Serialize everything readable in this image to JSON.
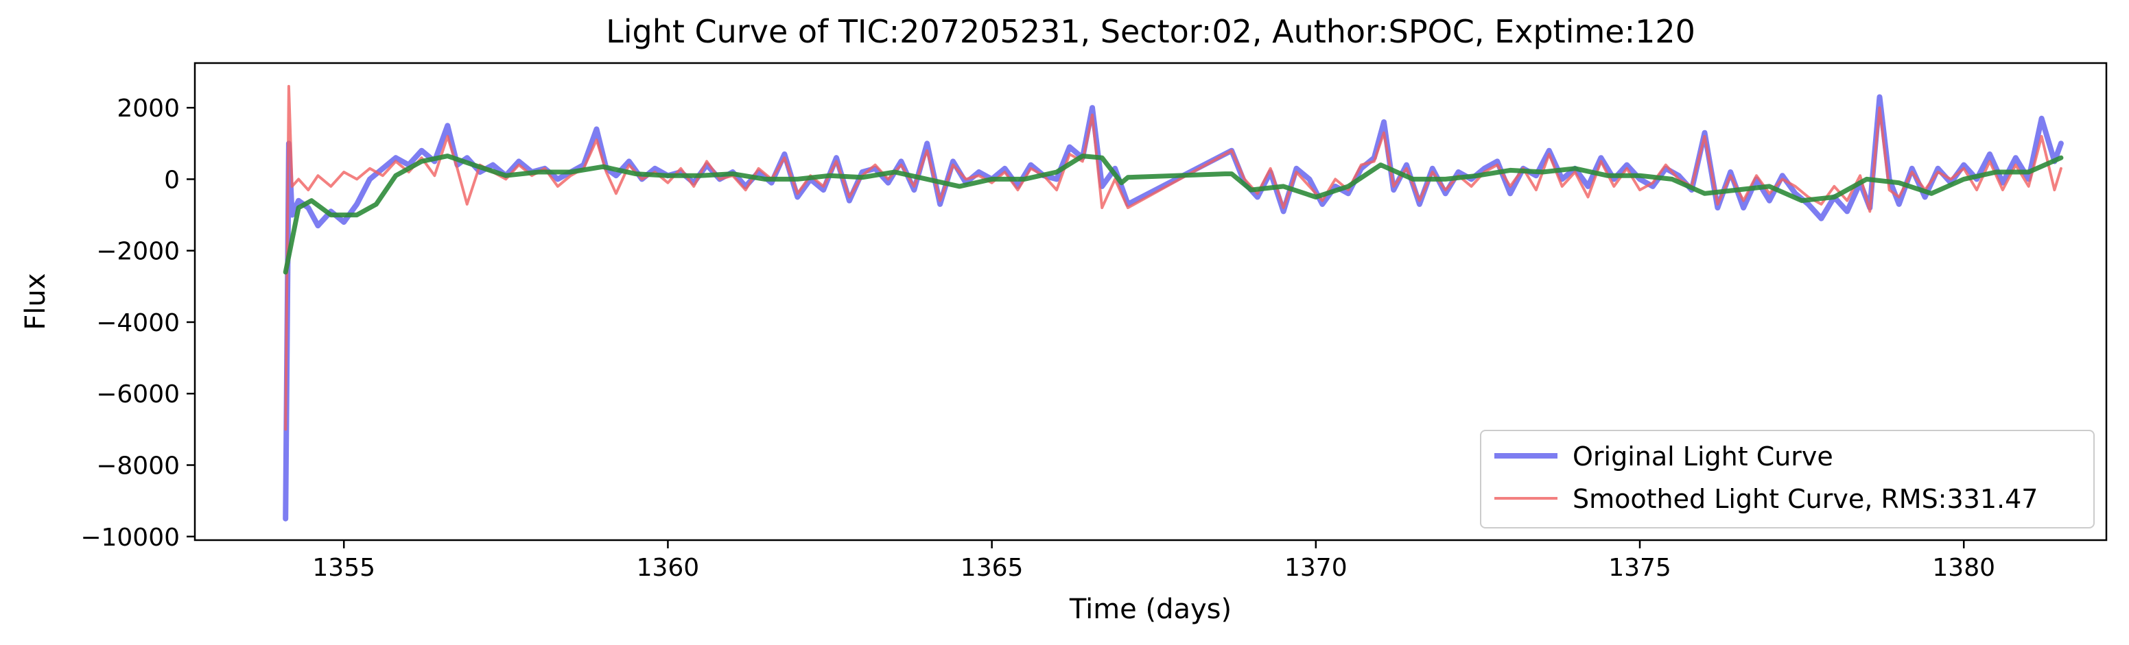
{
  "chart_data": {
    "type": "line",
    "title": "Light Curve of TIC:207205231, Sector:02, Author:SPOC, Exptime:120",
    "xlabel": "Time (days)",
    "ylabel": "Flux",
    "xlim": [
      1352.7,
      1382.2
    ],
    "ylim": [
      -10100,
      3250
    ],
    "x_ticks": [
      1355,
      1360,
      1365,
      1370,
      1375,
      1380
    ],
    "x_tick_labels": [
      "1355",
      "1360",
      "1365",
      "1370",
      "1375",
      "1380"
    ],
    "y_ticks": [
      2000,
      0,
      -2000,
      -4000,
      -6000,
      -8000,
      -10000
    ],
    "y_tick_labels": [
      "2000",
      "0",
      "−2000",
      "−4000",
      "−6000",
      "−8000",
      "−10000"
    ],
    "grid": false,
    "legend_position": "lower-right",
    "series": [
      {
        "name": "Original Light Curve",
        "color": "#6666ee",
        "x": [
          1354.1,
          1354.15,
          1354.2,
          1354.3,
          1354.45,
          1354.6,
          1354.8,
          1355.0,
          1355.2,
          1355.4,
          1355.6,
          1355.8,
          1356.0,
          1356.2,
          1356.4,
          1356.6,
          1356.75,
          1356.9,
          1357.1,
          1357.3,
          1357.5,
          1357.7,
          1357.9,
          1358.1,
          1358.3,
          1358.5,
          1358.7,
          1358.9,
          1359.05,
          1359.2,
          1359.4,
          1359.6,
          1359.8,
          1360.0,
          1360.2,
          1360.4,
          1360.6,
          1360.8,
          1361.0,
          1361.2,
          1361.4,
          1361.6,
          1361.8,
          1362.0,
          1362.2,
          1362.4,
          1362.6,
          1362.8,
          1363.0,
          1363.2,
          1363.4,
          1363.6,
          1363.8,
          1364.0,
          1364.2,
          1364.4,
          1364.6,
          1364.8,
          1365.0,
          1365.2,
          1365.4,
          1365.6,
          1365.8,
          1366.0,
          1366.2,
          1366.4,
          1366.55,
          1366.7,
          1366.9,
          1367.1,
          1368.7,
          1368.9,
          1369.1,
          1369.3,
          1369.5,
          1369.7,
          1369.9,
          1370.1,
          1370.3,
          1370.5,
          1370.7,
          1370.9,
          1371.05,
          1371.2,
          1371.4,
          1371.6,
          1371.8,
          1372.0,
          1372.2,
          1372.4,
          1372.6,
          1372.8,
          1373.0,
          1373.2,
          1373.4,
          1373.6,
          1373.8,
          1374.0,
          1374.2,
          1374.4,
          1374.6,
          1374.8,
          1375.0,
          1375.2,
          1375.4,
          1375.6,
          1375.8,
          1376.0,
          1376.2,
          1376.4,
          1376.6,
          1376.8,
          1377.0,
          1377.2,
          1377.4,
          1377.6,
          1377.8,
          1378.0,
          1378.2,
          1378.4,
          1378.55,
          1378.7,
          1378.85,
          1379.0,
          1379.2,
          1379.4,
          1379.6,
          1379.8,
          1380.0,
          1380.2,
          1380.4,
          1380.6,
          1380.8,
          1381.0,
          1381.2,
          1381.4,
          1381.5
        ],
        "y": [
          -9500,
          1000,
          -1000,
          -600,
          -800,
          -1300,
          -900,
          -1200,
          -700,
          0,
          300,
          600,
          400,
          800,
          500,
          1500,
          400,
          600,
          200,
          400,
          100,
          500,
          200,
          300,
          0,
          200,
          400,
          1400,
          300,
          100,
          500,
          0,
          300,
          100,
          200,
          -100,
          400,
          0,
          200,
          -200,
          200,
          -100,
          700,
          -500,
          0,
          -300,
          600,
          -600,
          200,
          300,
          -100,
          500,
          -300,
          1000,
          -700,
          500,
          -100,
          200,
          0,
          300,
          -200,
          400,
          100,
          0,
          900,
          600,
          2000,
          -200,
          300,
          -700,
          800,
          -100,
          -500,
          200,
          -900,
          300,
          0,
          -700,
          -200,
          -400,
          300,
          600,
          1600,
          -300,
          400,
          -700,
          300,
          -400,
          200,
          0,
          300,
          500,
          -400,
          300,
          100,
          800,
          0,
          300,
          -200,
          600,
          0,
          400,
          0,
          -200,
          300,
          100,
          -300,
          1300,
          -800,
          200,
          -800,
          0,
          -600,
          100,
          -400,
          -700,
          -1100,
          -500,
          -900,
          -100,
          -800,
          2300,
          0,
          -700,
          300,
          -500,
          300,
          -100,
          400,
          0,
          700,
          -100,
          600,
          0,
          1700,
          500,
          1000
        ],
        "line_width": 8,
        "opacity": 0.85
      },
      {
        "name": "Smoothed Light Curve, RMS:331.47",
        "color": "#f06060",
        "x": [
          1354.1,
          1354.15,
          1354.2,
          1354.3,
          1354.45,
          1354.6,
          1354.8,
          1355.0,
          1355.2,
          1355.4,
          1355.6,
          1355.8,
          1356.0,
          1356.2,
          1356.4,
          1356.6,
          1356.75,
          1356.9,
          1357.1,
          1357.3,
          1357.5,
          1357.7,
          1357.9,
          1358.1,
          1358.3,
          1358.5,
          1358.7,
          1358.9,
          1359.05,
          1359.2,
          1359.4,
          1359.6,
          1359.8,
          1360.0,
          1360.2,
          1360.4,
          1360.6,
          1360.8,
          1361.0,
          1361.2,
          1361.4,
          1361.6,
          1361.8,
          1362.0,
          1362.2,
          1362.4,
          1362.6,
          1362.8,
          1363.0,
          1363.2,
          1363.4,
          1363.6,
          1363.8,
          1364.0,
          1364.2,
          1364.4,
          1364.6,
          1364.8,
          1365.0,
          1365.2,
          1365.4,
          1365.6,
          1365.8,
          1366.0,
          1366.2,
          1366.4,
          1366.55,
          1366.7,
          1366.9,
          1367.1,
          1368.7,
          1368.9,
          1369.1,
          1369.3,
          1369.5,
          1369.7,
          1369.9,
          1370.1,
          1370.3,
          1370.5,
          1370.7,
          1370.9,
          1371.05,
          1371.2,
          1371.4,
          1371.6,
          1371.8,
          1372.0,
          1372.2,
          1372.4,
          1372.6,
          1372.8,
          1373.0,
          1373.2,
          1373.4,
          1373.6,
          1373.8,
          1374.0,
          1374.2,
          1374.4,
          1374.6,
          1374.8,
          1375.0,
          1375.2,
          1375.4,
          1375.6,
          1375.8,
          1376.0,
          1376.2,
          1376.4,
          1376.6,
          1376.8,
          1377.0,
          1377.2,
          1377.4,
          1377.6,
          1377.8,
          1378.0,
          1378.2,
          1378.4,
          1378.55,
          1378.7,
          1378.85,
          1379.0,
          1379.2,
          1379.4,
          1379.6,
          1379.8,
          1380.0,
          1380.2,
          1380.4,
          1380.6,
          1380.8,
          1381.0,
          1381.2,
          1381.4,
          1381.5
        ],
        "y": [
          -7000,
          2600,
          -200,
          0,
          -300,
          100,
          -200,
          200,
          0,
          300,
          100,
          500,
          200,
          600,
          100,
          1200,
          300,
          -700,
          400,
          200,
          0,
          400,
          100,
          300,
          -200,
          100,
          300,
          1100,
          200,
          -400,
          400,
          0,
          200,
          -100,
          300,
          -200,
          500,
          0,
          100,
          -300,
          300,
          0,
          600,
          -400,
          100,
          -200,
          500,
          -500,
          100,
          400,
          0,
          400,
          -200,
          800,
          -600,
          400,
          0,
          100,
          -100,
          200,
          -300,
          300,
          100,
          -300,
          700,
          500,
          1800,
          -800,
          0,
          -800,
          800,
          0,
          -400,
          300,
          -800,
          200,
          -200,
          -600,
          0,
          -300,
          400,
          500,
          1300,
          -200,
          300,
          -600,
          200,
          -300,
          100,
          -200,
          200,
          400,
          -200,
          300,
          -300,
          700,
          -200,
          200,
          -500,
          500,
          -200,
          300,
          -300,
          -100,
          400,
          0,
          -200,
          1200,
          -700,
          100,
          -600,
          100,
          -400,
          0,
          -200,
          -500,
          -700,
          -200,
          -600,
          100,
          -900,
          2000,
          -300,
          -500,
          200,
          -300,
          200,
          0,
          300,
          -300,
          500,
          -300,
          400,
          -200,
          1200,
          -300,
          300
        ],
        "line_width": 4,
        "opacity": 0.8
      },
      {
        "color": "#2e8b3a",
        "x": [
          1354.1,
          1354.3,
          1354.5,
          1354.8,
          1355.2,
          1355.5,
          1355.8,
          1356.2,
          1356.6,
          1357.0,
          1357.5,
          1358.0,
          1358.5,
          1359.0,
          1359.5,
          1360.0,
          1360.5,
          1361.0,
          1361.5,
          1362.0,
          1362.5,
          1363.0,
          1363.5,
          1364.0,
          1364.5,
          1365.0,
          1365.5,
          1366.0,
          1366.4,
          1366.7,
          1367.0,
          1367.1,
          1368.6,
          1368.7,
          1369.0,
          1369.5,
          1370.0,
          1370.5,
          1371.0,
          1371.5,
          1372.0,
          1372.5,
          1373.0,
          1373.5,
          1374.0,
          1374.5,
          1375.0,
          1375.5,
          1376.0,
          1376.5,
          1377.0,
          1377.5,
          1378.0,
          1378.5,
          1379.0,
          1379.5,
          1380.0,
          1380.5,
          1381.0,
          1381.5
        ],
        "y": [
          -2600,
          -800,
          -600,
          -1000,
          -1000,
          -700,
          100,
          500,
          650,
          400,
          100,
          200,
          200,
          350,
          150,
          100,
          100,
          150,
          0,
          0,
          100,
          50,
          200,
          0,
          -200,
          0,
          0,
          200,
          650,
          600,
          -100,
          50,
          150,
          150,
          -300,
          -200,
          -500,
          -200,
          400,
          0,
          0,
          100,
          250,
          200,
          300,
          100,
          100,
          0,
          -400,
          -300,
          -200,
          -600,
          -500,
          0,
          -100,
          -400,
          0,
          200,
          200,
          600
        ],
        "line_width": 7,
        "opacity": 0.9
      }
    ]
  }
}
